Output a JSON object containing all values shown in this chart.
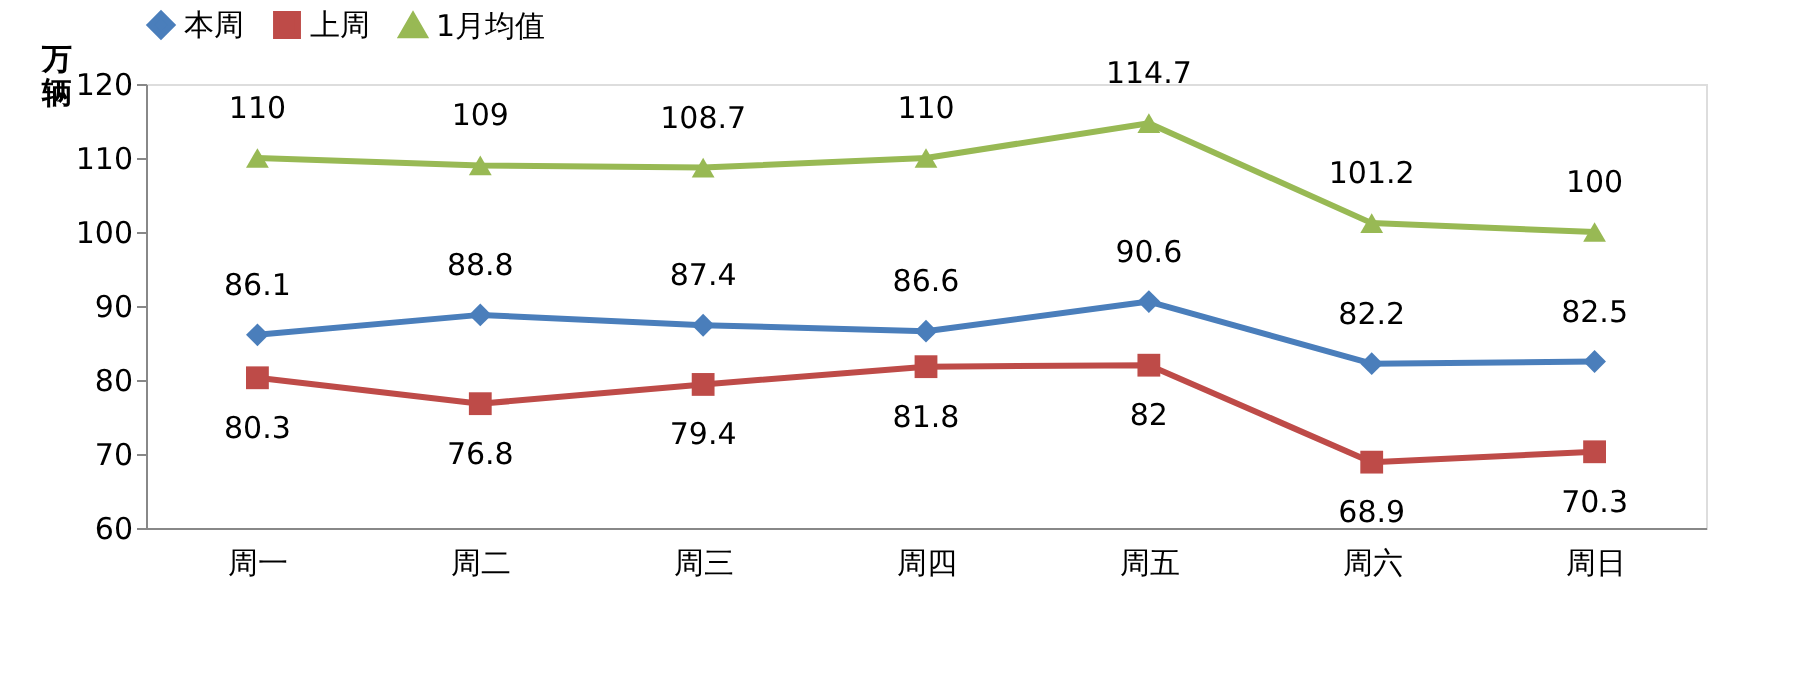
{
  "chart_data": {
    "type": "line",
    "ylabel": "万辆",
    "categories": [
      "周一",
      "周二",
      "周三",
      "周四",
      "周五",
      "周六",
      "周日"
    ],
    "series": [
      {
        "name": "本周",
        "color": "#4a7ebb",
        "marker": "diamond",
        "values": [
          86.1,
          88.8,
          87.4,
          86.6,
          90.6,
          82.2,
          82.5
        ]
      },
      {
        "name": "上周",
        "color": "#be4b48",
        "marker": "square",
        "values": [
          80.3,
          76.8,
          79.4,
          81.8,
          82,
          68.9,
          70.3
        ]
      },
      {
        "name": "1月均值",
        "color": "#98b954",
        "marker": "triangle",
        "values": [
          110,
          109,
          108.7,
          110,
          114.7,
          101.2,
          100
        ]
      }
    ],
    "ylim": [
      60,
      120
    ],
    "yticks": [
      60,
      70,
      80,
      90,
      100,
      110,
      120
    ],
    "grid": false,
    "legend": "top",
    "data_labels": true,
    "line_style": "solid"
  }
}
